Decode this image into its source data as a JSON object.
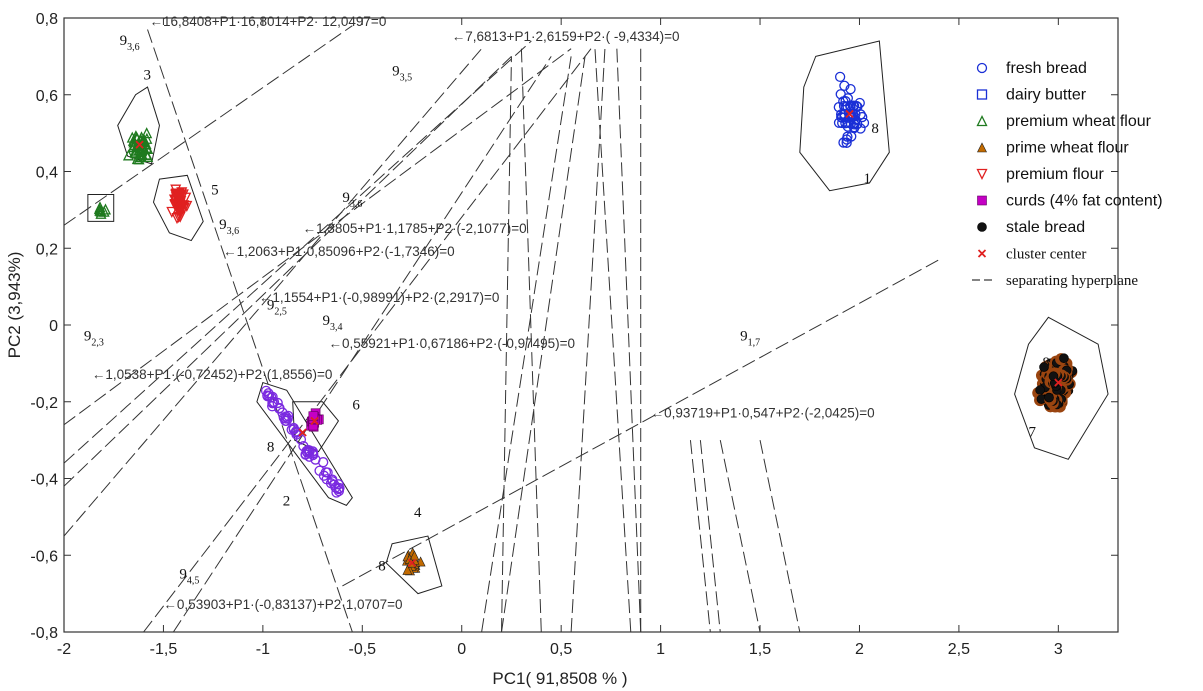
{
  "chart_data": {
    "type": "scatter",
    "title": "",
    "xlabel": "PC1( 91,8508 % )",
    "ylabel": "PC2 (3,943%)",
    "xlim": [
      -2,
      3.3
    ],
    "ylim": [
      -0.8,
      0.8
    ],
    "x_ticks": [
      -2,
      -1.5,
      -1,
      -0.5,
      0,
      0.5,
      1,
      1.5,
      2,
      2.5,
      3
    ],
    "x_tick_labels": [
      "-2",
      "-1,5",
      "-1",
      "-0,5",
      "0",
      "0,5",
      "1",
      "1,5",
      "2",
      "2,5",
      "3"
    ],
    "y_ticks": [
      -0.8,
      -0.6,
      -0.4,
      -0.2,
      0,
      0.2,
      0.4,
      0.6,
      0.8
    ],
    "y_tick_labels": [
      "-0,8",
      "-0,6",
      "-0,4",
      "-0,2",
      "0",
      "0,2",
      "0,4",
      "0,6",
      "0,8"
    ],
    "legend_position": "right",
    "series": [
      {
        "name": "fresh bread",
        "marker": "circle-open",
        "color": "#1a2fd6",
        "center": [
          1.95,
          0.55
        ],
        "spread": [
          0.1,
          0.1
        ],
        "count": 55,
        "seed": 11,
        "hull": [
          [
            1.78,
            0.7
          ],
          [
            2.1,
            0.74
          ],
          [
            2.15,
            0.45
          ],
          [
            2.05,
            0.37
          ],
          [
            1.85,
            0.35
          ],
          [
            1.7,
            0.45
          ],
          [
            1.72,
            0.62
          ]
        ]
      },
      {
        "name": "dairy butter",
        "marker": "square-open",
        "color": "#1a2fd6",
        "center": [
          1.95,
          0.55
        ],
        "spread": [
          0.05,
          0.05
        ],
        "count": 0,
        "seed": 12,
        "hull": []
      },
      {
        "name": "premium wheat flour",
        "marker": "triangle-open",
        "color": "#1f7a1f",
        "center": [
          -1.62,
          0.47
        ],
        "spread": [
          0.07,
          0.06
        ],
        "count": 40,
        "seed": 13,
        "hull": [
          [
            -1.58,
            0.62
          ],
          [
            -1.52,
            0.52
          ],
          [
            -1.56,
            0.42
          ],
          [
            -1.68,
            0.44
          ],
          [
            -1.73,
            0.52
          ],
          [
            -1.64,
            0.6
          ]
        ],
        "extra_hull": [
          [
            -1.88,
            0.34
          ],
          [
            -1.75,
            0.34
          ],
          [
            -1.75,
            0.27
          ],
          [
            -1.88,
            0.27
          ]
        ],
        "extra_points": {
          "center": [
            -1.81,
            0.3
          ],
          "spread": [
            0.03,
            0.02
          ],
          "count": 8
        }
      },
      {
        "name": "prime wheat flour",
        "marker": "triangle-filled",
        "color": "#c26a00",
        "center": [
          -0.25,
          -0.62
        ],
        "spread": [
          0.06,
          0.04
        ],
        "count": 20,
        "seed": 14,
        "hull": [
          [
            -0.35,
            -0.57
          ],
          [
            -0.17,
            -0.55
          ],
          [
            -0.1,
            -0.68
          ],
          [
            -0.22,
            -0.7
          ],
          [
            -0.38,
            -0.62
          ]
        ]
      },
      {
        "name": "premium flour",
        "marker": "triangle-down-open",
        "color": "#e02020",
        "center": [
          -1.42,
          0.32
        ],
        "spread": [
          0.05,
          0.05
        ],
        "count": 45,
        "seed": 15,
        "hull": [
          [
            -1.52,
            0.38
          ],
          [
            -1.38,
            0.39
          ],
          [
            -1.3,
            0.27
          ],
          [
            -1.36,
            0.22
          ],
          [
            -1.47,
            0.24
          ],
          [
            -1.55,
            0.32
          ]
        ]
      },
      {
        "name": "curds (4% fat content)",
        "marker": "square-filled",
        "color": "#c400c4",
        "center": [
          -0.74,
          -0.25
        ],
        "spread": [
          0.04,
          0.03
        ],
        "count": 18,
        "seed": 16,
        "hull": [
          [
            -0.85,
            -0.2
          ],
          [
            -0.7,
            -0.2
          ],
          [
            -0.62,
            -0.25
          ],
          [
            -0.72,
            -0.33
          ],
          [
            -0.84,
            -0.3
          ]
        ]
      },
      {
        "name": "stale bread",
        "marker": "circle-filled",
        "color": "#111111",
        "center": [
          3.0,
          -0.15
        ],
        "spread": [
          0.12,
          0.08
        ],
        "count": 70,
        "seed": 17,
        "hull": [
          [
            2.95,
            0.02
          ],
          [
            3.2,
            -0.05
          ],
          [
            3.25,
            -0.18
          ],
          [
            3.05,
            -0.35
          ],
          [
            2.88,
            -0.32
          ],
          [
            2.78,
            -0.18
          ],
          [
            2.85,
            -0.05
          ]
        ]
      },
      {
        "name": "cluster center",
        "marker": "x",
        "color": "#e02020",
        "points": [
          [
            1.95,
            0.55
          ],
          [
            -1.62,
            0.47
          ],
          [
            -1.42,
            0.32
          ],
          [
            -0.25,
            -0.62
          ],
          [
            -0.74,
            -0.25
          ],
          [
            -0.8,
            -0.28
          ],
          [
            3.0,
            -0.15
          ]
        ]
      },
      {
        "name": "separating hyperplane",
        "marker": "dash-line",
        "color": "#333333"
      }
    ],
    "group2_cluster": {
      "color": "#7a2ae0",
      "center": [
        -0.82,
        -0.3
      ],
      "count": 60,
      "seed": 18,
      "hull": [
        [
          -1.0,
          -0.15
        ],
        [
          -0.88,
          -0.17
        ],
        [
          -0.55,
          -0.45
        ],
        [
          -0.58,
          -0.47
        ],
        [
          -0.67,
          -0.45
        ],
        [
          -1.03,
          -0.2
        ]
      ]
    },
    "stale_fill": "#9a4510",
    "hyperplanes": [
      {
        "label": "←16,8408+P1·16,8014+P2· 12,0497=0",
        "segment": [
          [
            -1.58,
            0.77
          ],
          [
            -0.55,
            -0.8
          ]
        ],
        "label_at": [
          -1.57,
          0.79
        ]
      },
      {
        "label": "←7,6813+P1·2,6159+P2·( -9,4334)=0",
        "segment": [
          [
            -2.0,
            0.26
          ],
          [
            -0.55,
            0.78
          ]
        ],
        "label_at": [
          -0.05,
          0.75
        ]
      },
      {
        "label": "←1,3805+P1·1,1785+P2·(-2,1077)=0",
        "segment": [
          [
            -2.0,
            -0.26
          ],
          [
            0.55,
            0.72
          ]
        ],
        "label_at": [
          -0.8,
          0.25
        ]
      },
      {
        "label": "←1,2063+P1·0,85096+P2·(-1,7346)=0",
        "segment": [
          [
            -2.0,
            -0.36
          ],
          [
            0.35,
            0.74
          ]
        ],
        "label_at": [
          -1.2,
          0.19
        ]
      },
      {
        "label": "←1,1554+P1·(-0,98991)+P2·(2,2917)=0",
        "segment": [
          [
            -2.0,
            -0.42
          ],
          [
            0.25,
            0.7
          ]
        ],
        "label_at": [
          -1.02,
          0.07
        ]
      },
      {
        "label": "←0,55921+P1·0,67186+P2·(-0,97495)=0",
        "segment": [
          [
            -2.0,
            -0.55
          ],
          [
            0.1,
            0.72
          ]
        ],
        "label_at": [
          -0.67,
          -0.05
        ]
      },
      {
        "label": "←1,0538+P1·(-0,72452)+P2·(1,8556)=0",
        "segment": [
          [
            -1.6,
            -0.8
          ],
          [
            0.65,
            0.72
          ]
        ],
        "label_at": [
          -1.86,
          -0.13
        ]
      },
      {
        "label": "←0,93719+P1·0,547+P2·(-2,0425)=0",
        "segment": [
          [
            -0.6,
            -0.68
          ],
          [
            2.4,
            0.17
          ]
        ],
        "label_at": [
          0.95,
          -0.23
        ]
      },
      {
        "label": "←0,53903+P1·(-0,83137)+P2·1,0707=0",
        "segment": [
          [
            -1.45,
            -0.8
          ],
          [
            0.45,
            0.7
          ]
        ],
        "label_at": [
          -1.5,
          -0.73
        ]
      }
    ],
    "vertical_lines": [
      [
        [
          0.1,
          -0.8
        ],
        [
          0.55,
          0.7
        ]
      ],
      [
        [
          0.2,
          -0.8
        ],
        [
          0.62,
          0.7
        ]
      ],
      [
        [
          0.2,
          -0.8
        ],
        [
          0.25,
          0.7
        ]
      ],
      [
        [
          0.4,
          -0.8
        ],
        [
          0.3,
          0.72
        ]
      ],
      [
        [
          0.55,
          -0.8
        ],
        [
          0.72,
          0.72
        ]
      ],
      [
        [
          0.85,
          -0.8
        ],
        [
          0.67,
          0.72
        ]
      ],
      [
        [
          0.9,
          -0.8
        ],
        [
          0.9,
          0.72
        ]
      ],
      [
        [
          0.9,
          -0.8
        ],
        [
          0.78,
          0.72
        ]
      ],
      [
        [
          1.15,
          -0.3
        ],
        [
          1.25,
          -0.8
        ]
      ],
      [
        [
          1.2,
          -0.3
        ],
        [
          1.3,
          -0.8
        ]
      ],
      [
        [
          1.3,
          -0.3
        ],
        [
          1.5,
          -0.8
        ]
      ],
      [
        [
          1.5,
          -0.3
        ],
        [
          1.7,
          -0.8
        ]
      ]
    ],
    "annotations": [
      {
        "text": "9",
        "sub": "3,6",
        "at": [
          -1.72,
          0.73
        ]
      },
      {
        "text": "9",
        "sub": "3,5",
        "at": [
          -0.35,
          0.65
        ]
      },
      {
        "text": "9",
        "sub": "3,6",
        "at": [
          -0.6,
          0.32
        ]
      },
      {
        "text": "9",
        "sub": "3,6",
        "at": [
          -1.22,
          0.25
        ]
      },
      {
        "text": "9",
        "sub": "2,5",
        "at": [
          -0.98,
          0.04
        ]
      },
      {
        "text": "9",
        "sub": "3,4",
        "at": [
          -0.7,
          0.0
        ]
      },
      {
        "text": "9",
        "sub": "2,3",
        "at": [
          -1.9,
          -0.04
        ]
      },
      {
        "text": "9",
        "sub": "1,7",
        "at": [
          1.4,
          -0.04
        ]
      },
      {
        "text": "9",
        "sub": "4,5",
        "at": [
          -1.42,
          -0.66
        ]
      }
    ],
    "point_labels": [
      {
        "text": "1",
        "at": [
          2.02,
          0.37
        ]
      },
      {
        "text": "8",
        "at": [
          2.06,
          0.5
        ]
      },
      {
        "text": "3",
        "at": [
          -1.6,
          0.64
        ]
      },
      {
        "text": "5",
        "at": [
          -1.26,
          0.34
        ]
      },
      {
        "text": "2",
        "at": [
          -0.9,
          -0.47
        ]
      },
      {
        "text": "8",
        "at": [
          -0.98,
          -0.33
        ]
      },
      {
        "text": "6",
        "at": [
          -0.55,
          -0.22
        ]
      },
      {
        "text": "4",
        "at": [
          -0.24,
          -0.5
        ]
      },
      {
        "text": "8",
        "at": [
          -0.42,
          -0.64
        ]
      },
      {
        "text": "7",
        "at": [
          2.85,
          -0.29
        ]
      },
      {
        "text": "8",
        "at": [
          2.92,
          -0.11
        ]
      }
    ]
  }
}
